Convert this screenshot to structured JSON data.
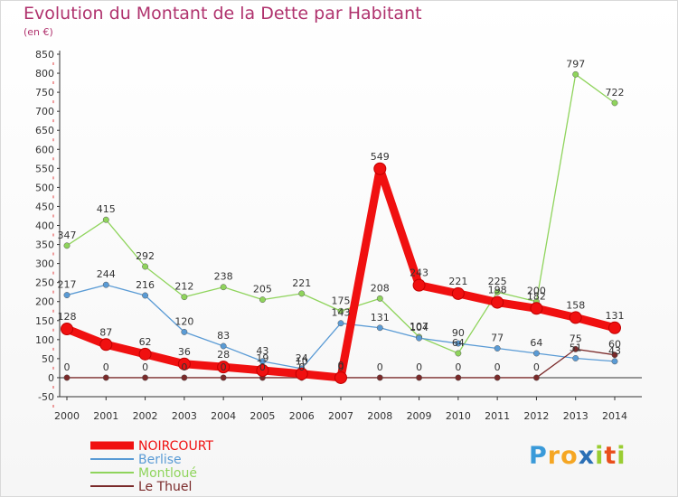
{
  "chart_data": {
    "type": "line",
    "title": "Evolution du Montant de la Dette par Habitant",
    "subtitle": "(en €)",
    "xlabel": "",
    "ylabel": "",
    "ylim": [
      -50,
      850
    ],
    "y_ticks": [
      -50,
      0,
      50,
      100,
      150,
      200,
      250,
      300,
      350,
      400,
      450,
      500,
      550,
      600,
      650,
      700,
      750,
      800,
      850
    ],
    "categories": [
      "2000",
      "2001",
      "2002",
      "2003",
      "2004",
      "2005",
      "2006",
      "2007",
      "2008",
      "2009",
      "2010",
      "2011",
      "2012",
      "2013",
      "2014"
    ],
    "grid": false,
    "legend_position": "bottom-left",
    "series": [
      {
        "name": "Montloué",
        "color": "#8fd45c",
        "values": [
          347,
          415,
          292,
          212,
          238,
          205,
          221,
          175,
          208,
          107,
          64,
          225,
          200,
          797,
          722
        ]
      },
      {
        "name": "Berlise",
        "color": "#5a9bd5",
        "values": [
          217,
          244,
          216,
          120,
          83,
          43,
          24,
          143,
          131,
          104,
          90,
          77,
          64,
          51,
          43
        ]
      },
      {
        "name": "Le Thuel",
        "color": "#7a2a2a",
        "values": [
          0,
          0,
          0,
          0,
          0,
          0,
          0,
          0,
          0,
          0,
          0,
          0,
          0,
          75,
          60
        ]
      },
      {
        "name": "NOIRCOURT",
        "color": "#f01010",
        "values": [
          128,
          87,
          62,
          36,
          28,
          19,
          10,
          0,
          549,
          243,
          221,
          198,
          182,
          158,
          131
        ]
      }
    ],
    "legend_order": [
      "NOIRCOURT",
      "Berlise",
      "Montloué",
      "Le Thuel"
    ]
  },
  "brand": {
    "letters": [
      "P",
      "r",
      "o",
      "x",
      "i",
      "t",
      "i"
    ],
    "colors": [
      "#3a9ad9",
      "#f5a623",
      "#f5a623",
      "#2a6fb5",
      "#9acd32",
      "#e94e1b",
      "#9acd32"
    ]
  }
}
